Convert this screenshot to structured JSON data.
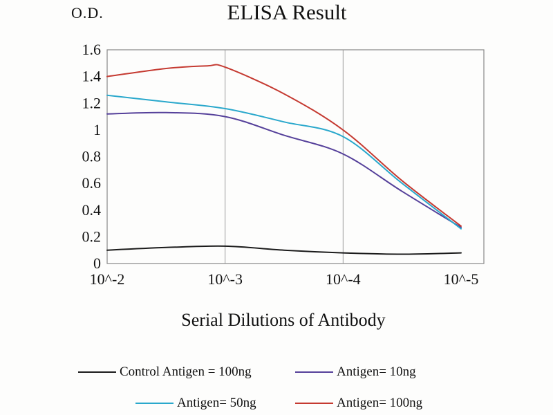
{
  "page": {
    "od_label": "O.D.",
    "title": "ELISA Result",
    "x_axis_label": "Serial Dilutions of Antibody"
  },
  "chart_data": {
    "type": "line",
    "title": "ELISA Result",
    "ylabel": "O.D.",
    "xlabel": "Serial Dilutions of Antibody",
    "ylim": [
      0,
      1.6
    ],
    "y_ticks": [
      0,
      0.2,
      0.4,
      0.6,
      0.8,
      1,
      1.2,
      1.4,
      1.6
    ],
    "x_tick_labels": [
      "10^-2",
      "10^-3",
      "10^-4",
      "10^-5"
    ],
    "x_tick_decades": [
      2,
      3,
      4,
      5
    ],
    "grid": "vertical",
    "legend_position": "bottom",
    "axis_color": "#878787",
    "grid_color": "#9b9b9b",
    "text_color": "#111111",
    "series": [
      {
        "name": "Control Antigen = 100ng",
        "color": "#1b1b1b",
        "x": [
          2,
          2.5,
          3,
          3.5,
          4,
          4.5,
          5
        ],
        "values": [
          0.1,
          0.12,
          0.13,
          0.1,
          0.08,
          0.07,
          0.08
        ]
      },
      {
        "name": "Antigen= 10ng",
        "color": "#55409a",
        "x": [
          2,
          2.5,
          3,
          3.5,
          4,
          4.5,
          5
        ],
        "values": [
          1.12,
          1.13,
          1.1,
          0.96,
          0.82,
          0.54,
          0.27
        ]
      },
      {
        "name": "Antigen= 50ng",
        "color": "#2aa8cc",
        "x": [
          2,
          2.5,
          3,
          3.5,
          4,
          4.5,
          5
        ],
        "values": [
          1.26,
          1.21,
          1.16,
          1.06,
          0.95,
          0.6,
          0.26
        ]
      },
      {
        "name": "Antigen= 100ng",
        "color": "#c53a31",
        "x": [
          2,
          2.5,
          2.85,
          3,
          3.5,
          4,
          4.5,
          5
        ],
        "values": [
          1.4,
          1.46,
          1.48,
          1.47,
          1.27,
          1.0,
          0.62,
          0.28
        ]
      }
    ]
  }
}
